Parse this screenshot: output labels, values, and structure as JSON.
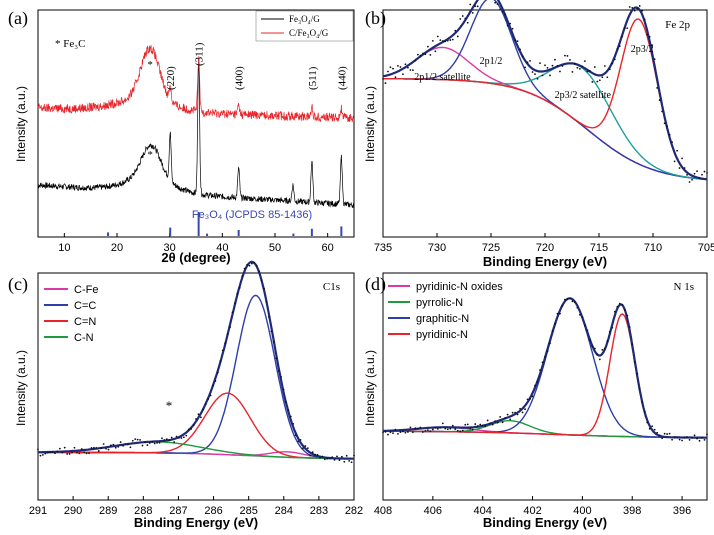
{
  "chart_data": [
    {
      "type": "line",
      "panel_label": "(a)",
      "xlabel": "2θ (degree)",
      "ylabel": "Intensity (a.u.)",
      "xlim": [
        5,
        65
      ],
      "xticks": [
        10,
        20,
        30,
        40,
        50,
        60
      ],
      "annotation": "* Fe₃C",
      "reference_label": "Fe₃O₄ (JCPDS 85-1436)",
      "legend": [
        "Fe₃O₄/G",
        "C/Fe₃O₄/G"
      ],
      "series": [
        {
          "name": "Fe₃O₄/G",
          "color": "#000000",
          "peaks": [
            {
              "x": 26.5,
              "h": 0.25
            },
            {
              "x": 30.1,
              "h": 0.35
            },
            {
              "x": 35.5,
              "h": 1.0
            },
            {
              "x": 43.1,
              "h": 0.22
            },
            {
              "x": 53.4,
              "h": 0.12
            },
            {
              "x": 57.0,
              "h": 0.3
            },
            {
              "x": 62.6,
              "h": 0.35
            }
          ]
        },
        {
          "name": "C/Fe₃O₄/G",
          "color": "#e8242a",
          "peaks": [
            {
              "x": 26.3,
              "h": 0.55
            },
            {
              "x": 30.1,
              "h": 0.15
            },
            {
              "x": 35.5,
              "h": 0.55
            },
            {
              "x": 43.1,
              "h": 0.1
            },
            {
              "x": 57.0,
              "h": 0.1
            },
            {
              "x": 62.6,
              "h": 0.1
            }
          ]
        }
      ],
      "peak_labels": [
        {
          "x": 26.3,
          "text": "*"
        },
        {
          "x": 30.1,
          "text": "(220)"
        },
        {
          "x": 35.5,
          "text": "(311)"
        },
        {
          "x": 43.1,
          "text": "(400)"
        },
        {
          "x": 57.0,
          "text": "(511)"
        },
        {
          "x": 62.6,
          "text": "(440)"
        }
      ],
      "reference_lines": [
        {
          "x": 18.3,
          "h": 0.15
        },
        {
          "x": 30.1,
          "h": 0.35
        },
        {
          "x": 35.5,
          "h": 1.0
        },
        {
          "x": 37.1,
          "h": 0.1
        },
        {
          "x": 43.1,
          "h": 0.25
        },
        {
          "x": 53.5,
          "h": 0.1
        },
        {
          "x": 57.0,
          "h": 0.3
        },
        {
          "x": 62.6,
          "h": 0.4
        }
      ]
    },
    {
      "type": "line",
      "panel_label": "(b)",
      "title": "Fe 2p",
      "xlabel": "Binding Energy (eV)",
      "ylabel": "Intensity (a.u.)",
      "xlim": [
        735,
        705
      ],
      "xticks": [
        735,
        730,
        725,
        720,
        715,
        710,
        705
      ],
      "peak_labels": [
        {
          "x": 729.5,
          "text": "2p1/2 satellite"
        },
        {
          "x": 725,
          "text": "2p1/2"
        },
        {
          "x": 716.5,
          "text": "2p3/2 satellite"
        },
        {
          "x": 711,
          "text": "2p3/2"
        }
      ],
      "components": [
        {
          "color": "#d93aa8",
          "center": 729.5,
          "height": 0.14,
          "width": 2.4
        },
        {
          "color": "#2c3fa8",
          "center": 725.0,
          "height": 0.37,
          "width": 1.9
        },
        {
          "color": "#1f9ea0",
          "center": 716.5,
          "height": 0.25,
          "width": 2.8
        },
        {
          "color": "#e8242a",
          "center": 711.3,
          "height": 0.63,
          "width": 1.7
        }
      ],
      "background": {
        "color": "#8c8c8c",
        "high": 0.55,
        "low": 0.1,
        "step_center": 716,
        "step_width": 3
      }
    },
    {
      "type": "line",
      "panel_label": "(c)",
      "title": "C1s",
      "xlabel": "Binding Energy (eV)",
      "ylabel": "Intensity (a.u.)",
      "xlim": [
        291,
        282
      ],
      "xticks": [
        291,
        290,
        289,
        288,
        287,
        286,
        285,
        284,
        283,
        282
      ],
      "annotation": "*",
      "legend": [
        "C-Fe",
        "C=C",
        "C=N",
        "C-N"
      ],
      "components": [
        {
          "name": "C-Fe",
          "color": "#d93aa8",
          "center": 283.9,
          "height": 0.025,
          "width": 0.5
        },
        {
          "name": "C=C",
          "color": "#2c3fa8",
          "center": 284.8,
          "height": 0.73,
          "width": 0.55
        },
        {
          "name": "C=N",
          "color": "#e8242a",
          "center": 285.6,
          "height": 0.28,
          "width": 0.65
        },
        {
          "name": "C-N",
          "color": "#1f9a3c",
          "center": 287.6,
          "height": 0.05,
          "width": 1.2
        }
      ],
      "background": {
        "color": "#8c8c8c",
        "high": 0.03,
        "low": 0.0,
        "step_center": 285,
        "step_width": 1
      }
    },
    {
      "type": "line",
      "panel_label": "(d)",
      "title": "N 1s",
      "xlabel": "Binding Energy (eV)",
      "ylabel": "Intensity (a.u.)",
      "xlim": [
        408,
        395
      ],
      "xticks": [
        408,
        406,
        404,
        402,
        400,
        398,
        396
      ],
      "legend": [
        "pyridinic-N oxides",
        "pyrrolic-N",
        "graphitic-N",
        "pyridinic-N"
      ],
      "components": [
        {
          "name": "pyridinic-N oxides",
          "color": "#d93aa8",
          "center": 405.5,
          "height": 0.025,
          "width": 1.1
        },
        {
          "name": "pyrrolic-N",
          "color": "#1f9a3c",
          "center": 402.9,
          "height": 0.07,
          "width": 0.8
        },
        {
          "name": "graphitic-N",
          "color": "#2c3fa8",
          "center": 400.5,
          "height": 0.78,
          "width": 0.9
        },
        {
          "name": "pyridinic-N",
          "color": "#e8242a",
          "center": 398.4,
          "height": 0.7,
          "width": 0.5
        }
      ],
      "background": {
        "color": "#8c8c8c",
        "high": 0.04,
        "low": 0.0,
        "step_center": 401,
        "step_width": 2
      }
    }
  ]
}
